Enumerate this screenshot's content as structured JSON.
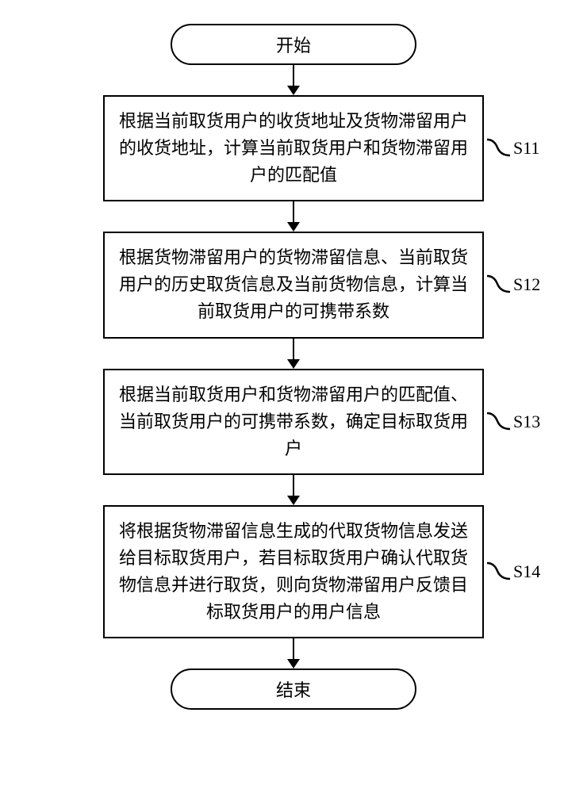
{
  "flowchart": {
    "type": "flowchart",
    "background_color": "#ffffff",
    "border_color": "#000000",
    "border_width": 2.5,
    "text_color": "#000000",
    "font_size": 22,
    "font_family": "SimSun",
    "terminal_width": 310,
    "terminal_radius": 50,
    "process_width": 480,
    "arrow_length": 38,
    "arrow_head_width": 16,
    "arrow_head_height": 12,
    "line_height": 1.55,
    "start": {
      "label": "开始"
    },
    "end": {
      "label": "结束"
    },
    "steps": [
      {
        "id": "S11",
        "text": "根据当前取货用户的收货地址及货物滞留用户的收货地址，计算当前取货用户和货物滞留用户的匹配值"
      },
      {
        "id": "S12",
        "text": "根据货物滞留用户的货物滞留信息、当前取货用户的历史取货信息及当前货物信息，计算当前取货用户的可携带系数"
      },
      {
        "id": "S13",
        "text": "根据当前取货用户和货物滞留用户的匹配值、当前取货用户的可携带系数，确定目标取货用户"
      },
      {
        "id": "S14",
        "text": "将根据货物滞留信息生成的代取货物信息发送给目标取货用户，若目标取货用户确认代取货物信息并进行取货，则向货物滞留用户反馈目标取货用户的用户信息"
      }
    ]
  }
}
